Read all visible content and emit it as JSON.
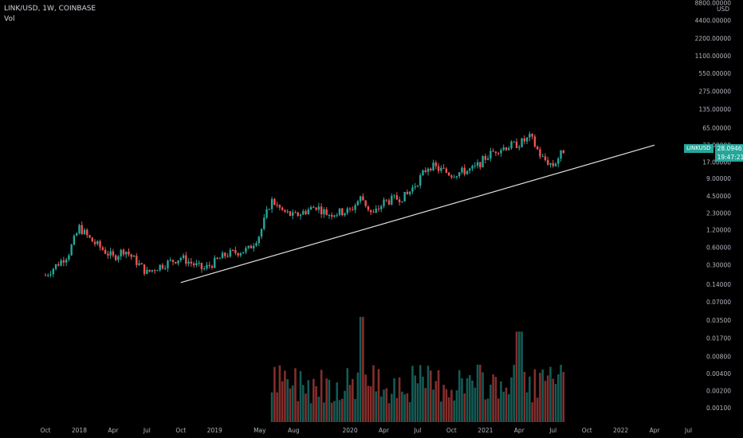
{
  "header": {
    "title": "LINK/USD, 1W, COINBASE",
    "indicator": "Vol"
  },
  "price_axis": {
    "unit": "USD",
    "labels": [
      "8800.00000",
      "4400.00000",
      "2200.00000",
      "1100.00000",
      "550.00000",
      "275.00000",
      "135.00000",
      "65.00000",
      "33.00000",
      "17.00000",
      "9.00000",
      "4.50000",
      "2.30000",
      "1.20000",
      "0.60000",
      "0.30000",
      "0.14000",
      "0.07000"
    ]
  },
  "volume_axis": {
    "labels": [
      "0.03500",
      "0.01700",
      "0.00800",
      "0.00400",
      "0.00200",
      "0.00100"
    ]
  },
  "current_price": {
    "symbol": "LINKUSD",
    "value": "28.09461",
    "countdown": "19:47:21"
  },
  "time_axis": {
    "labels": [
      "Oct",
      "2018",
      "Apr",
      "Jul",
      "Oct",
      "2019",
      "May",
      "Aug",
      "2020",
      "Apr",
      "Jul",
      "Oct",
      "2021",
      "Apr",
      "Jul",
      "Oct",
      "2022",
      "Apr",
      "Jul"
    ]
  },
  "colors": {
    "up": "#26a69a",
    "down": "#ef5350",
    "background": "#000000",
    "trendline": "#e0e0e0"
  },
  "chart_data": {
    "type": "candlestick",
    "title": "LINK/USD, 1W, COINBASE",
    "interval": "1W",
    "y_scale": "log",
    "ylim": [
      0.05,
      8800
    ],
    "trendline": {
      "from": [
        "2018-10",
        0.15
      ],
      "to": [
        "2022-04",
        33
      ]
    },
    "anchors": [
      {
        "date": "2017-10",
        "price": 0.2
      },
      {
        "date": "2017-12",
        "price": 0.45
      },
      {
        "date": "2018-01",
        "price": 1.3
      },
      {
        "date": "2018-02",
        "price": 0.8
      },
      {
        "date": "2018-04",
        "price": 0.4
      },
      {
        "date": "2018-05",
        "price": 0.55
      },
      {
        "date": "2018-07",
        "price": 0.22
      },
      {
        "date": "2018-08",
        "price": 0.28
      },
      {
        "date": "2018-10",
        "price": 0.4
      },
      {
        "date": "2018-12",
        "price": 0.25
      },
      {
        "date": "2019-02",
        "price": 0.45
      },
      {
        "date": "2019-04",
        "price": 0.55
      },
      {
        "date": "2019-05",
        "price": 1.0
      },
      {
        "date": "2019-06",
        "price": 3.8
      },
      {
        "date": "2019-07",
        "price": 2.5
      },
      {
        "date": "2019-08",
        "price": 2.0
      },
      {
        "date": "2019-10",
        "price": 3.0
      },
      {
        "date": "2019-11",
        "price": 2.2
      },
      {
        "date": "2020-01",
        "price": 2.5
      },
      {
        "date": "2020-02",
        "price": 4.3
      },
      {
        "date": "2020-03",
        "price": 2.1
      },
      {
        "date": "2020-04",
        "price": 3.5
      },
      {
        "date": "2020-06",
        "price": 4.5
      },
      {
        "date": "2020-07",
        "price": 8.0
      },
      {
        "date": "2020-08",
        "price": 15.0
      },
      {
        "date": "2020-10",
        "price": 10.5
      },
      {
        "date": "2020-12",
        "price": 13.0
      },
      {
        "date": "2021-01",
        "price": 20.0
      },
      {
        "date": "2021-02",
        "price": 28.0
      },
      {
        "date": "2021-04",
        "price": 35.0
      },
      {
        "date": "2021-05",
        "price": 45.0
      },
      {
        "date": "2021-06",
        "price": 20.0
      },
      {
        "date": "2021-07",
        "price": 15.0
      },
      {
        "date": "2021-08",
        "price": 28.09
      }
    ],
    "volume_bands": [
      {
        "from": "2019-06",
        "to": "2021-08",
        "typical": 0.002
      },
      {
        "date": "2020-02",
        "peak": 0.04
      },
      {
        "date": "2021-04",
        "peak": 0.022
      }
    ]
  }
}
